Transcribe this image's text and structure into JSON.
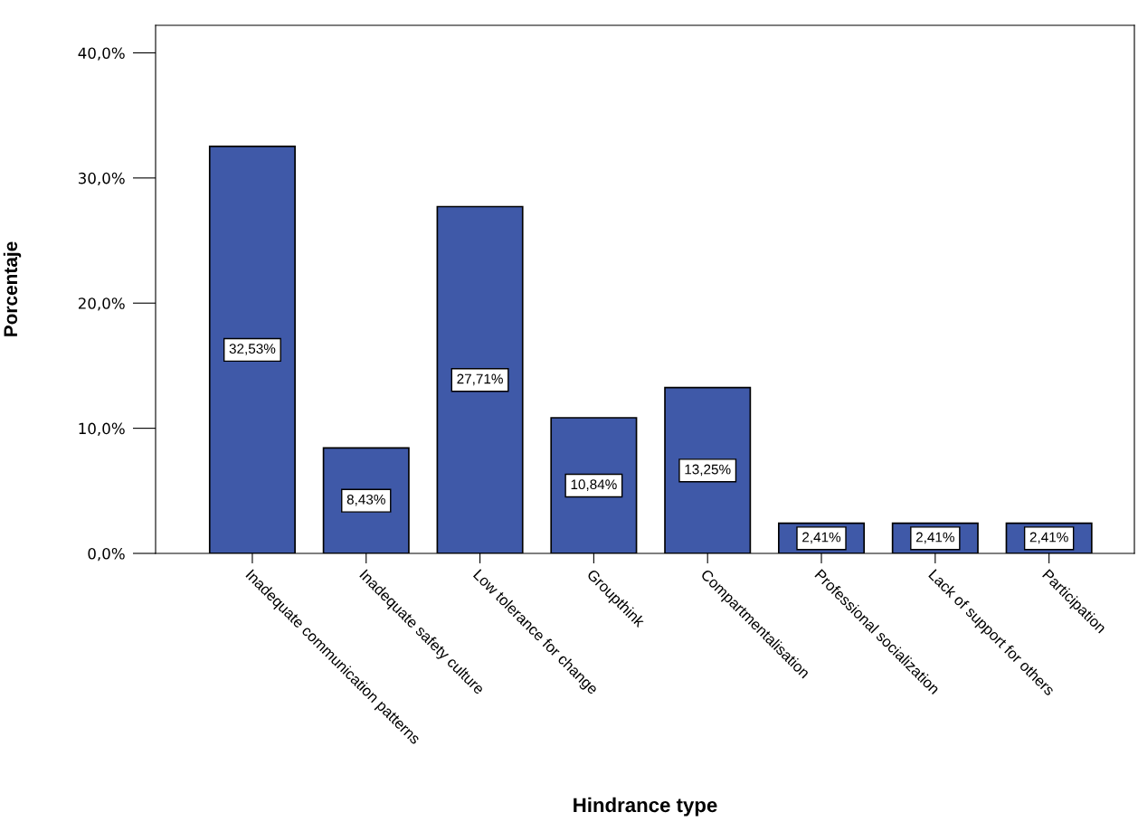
{
  "chart_data": {
    "type": "bar",
    "xlabel": "Hindrance type",
    "ylabel": "Porcentaje",
    "categories": [
      "Inadequate communication patterns",
      "Inadequate safety culture",
      "Low tolerance for change",
      "Groupthink",
      "Compartmentalisation",
      "Professional socialization",
      "Lack of support for others",
      "Participation"
    ],
    "values": [
      32.53,
      8.43,
      27.71,
      10.84,
      13.25,
      2.41,
      2.41,
      2.41
    ],
    "value_labels": [
      "32,53%",
      "8,43%",
      "27,71%",
      "10,84%",
      "13,25%",
      "2,41%",
      "2,41%",
      "2,41%"
    ],
    "color": "#3f59a8",
    "ylim": [
      0,
      42.2
    ],
    "yticks": [
      {
        "value": 0,
        "label": "0,0%"
      },
      {
        "value": 10,
        "label": "10,0%"
      },
      {
        "value": 20,
        "label": "20,0%"
      },
      {
        "value": 30,
        "label": "30,0%"
      },
      {
        "value": 40,
        "label": "40,0%"
      }
    ],
    "grid": false
  }
}
